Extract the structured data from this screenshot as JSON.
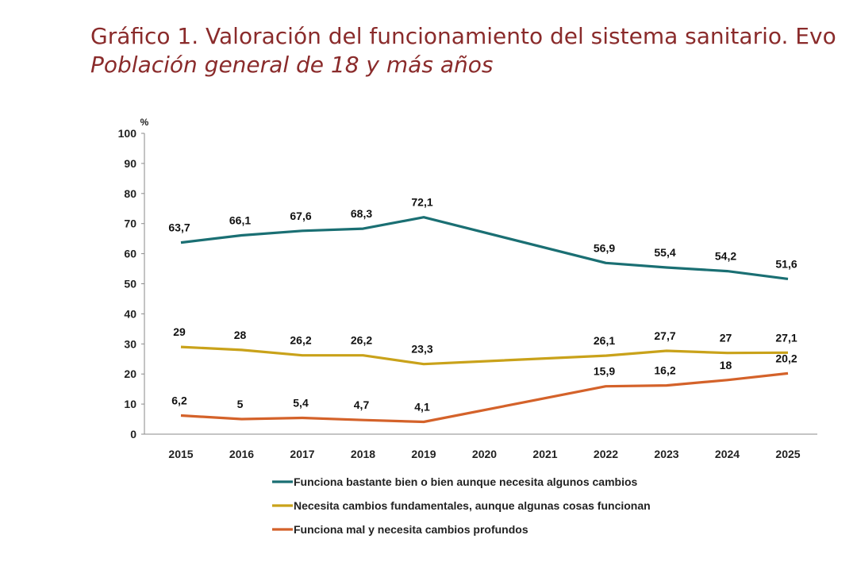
{
  "header": {
    "title": "Gráfico 1. Valoración del funcionamiento del sistema sanitario. Evo",
    "subtitle": "Población general de 18 y más años"
  },
  "chart_data": {
    "type": "line",
    "title": "Gráfico 1. Valoración del funcionamiento del sistema sanitario. Evo",
    "subtitle": "Población general de 18 y más años",
    "ylabel": "%",
    "xlabel": "",
    "ylim": [
      0,
      100
    ],
    "yticks": [
      "0",
      "10",
      "20",
      "30",
      "40",
      "50",
      "60",
      "70",
      "80",
      "90",
      "100"
    ],
    "categories": [
      "2015",
      "2016",
      "2017",
      "2018",
      "2019",
      "2020",
      "2021",
      "2022",
      "2023",
      "2024",
      "2025"
    ],
    "legend_position": "bottom",
    "grid": false,
    "series": [
      {
        "name": "Funciona  bastante bien o bien aunque necesita algunos cambios",
        "color": "#1a6f73",
        "values": [
          63.7,
          66.1,
          67.6,
          68.3,
          72.1,
          null,
          null,
          56.9,
          55.4,
          54.2,
          51.6
        ],
        "labels": [
          "63,7",
          "66,1",
          "67,6",
          "68,3",
          "72,1",
          "",
          "",
          "56,9",
          "55,4",
          "54,2",
          "51,6"
        ]
      },
      {
        "name": "Necesita cambios fundamentales, aunque algunas cosas funcionan",
        "color": "#c9a21a",
        "values": [
          29,
          28,
          26.2,
          26.2,
          23.3,
          null,
          null,
          26.1,
          27.7,
          27,
          27.1
        ],
        "labels": [
          "29",
          "28",
          "26,2",
          "26,2",
          "23,3",
          "",
          "",
          "26,1",
          "27,7",
          "27",
          "27,1"
        ]
      },
      {
        "name": "Funciona mal y necesita cambios profundos",
        "color": "#d4622a",
        "values": [
          6.2,
          5,
          5.4,
          4.7,
          4.1,
          null,
          null,
          15.9,
          16.2,
          18,
          20.2
        ],
        "labels": [
          "6,2",
          "5",
          "5,4",
          "4,7",
          "4,1",
          "",
          "",
          "15,9",
          "16,2",
          "18",
          "20,2"
        ]
      }
    ]
  }
}
